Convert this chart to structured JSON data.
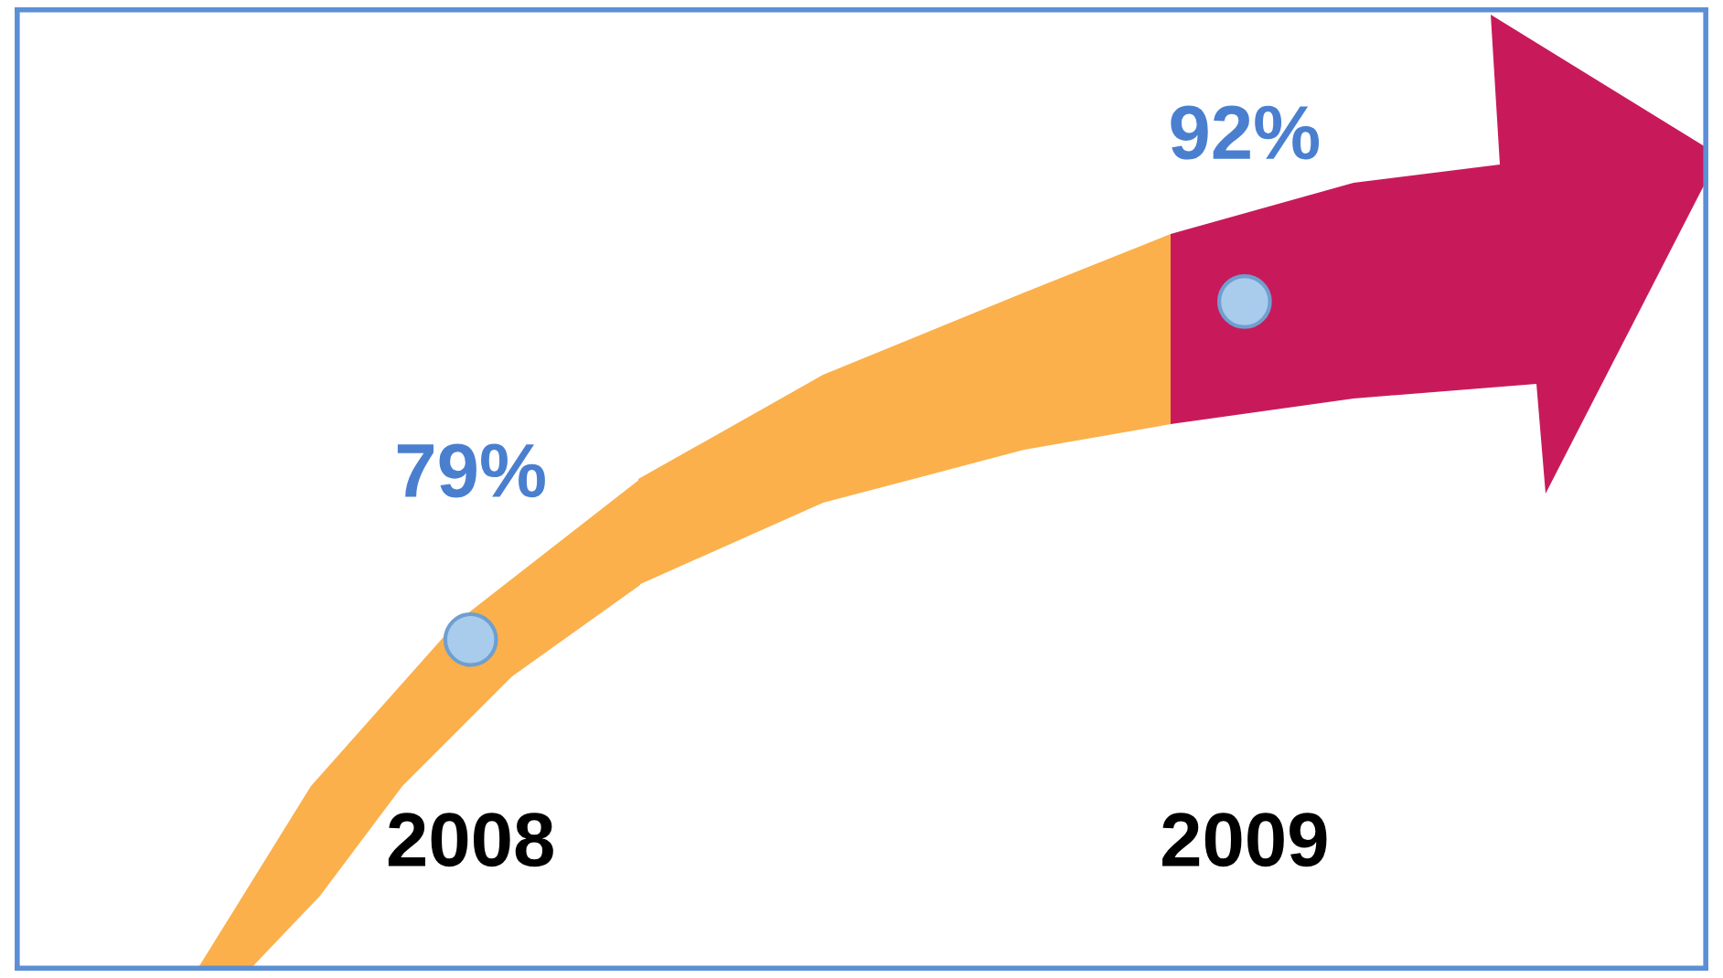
{
  "chart_data": {
    "type": "scatter",
    "categories": [
      "2008",
      "2009"
    ],
    "values": [
      79,
      92
    ],
    "value_labels": [
      "79%",
      "92%"
    ],
    "color": "#a9cbec",
    "marker": "circle"
  }
}
